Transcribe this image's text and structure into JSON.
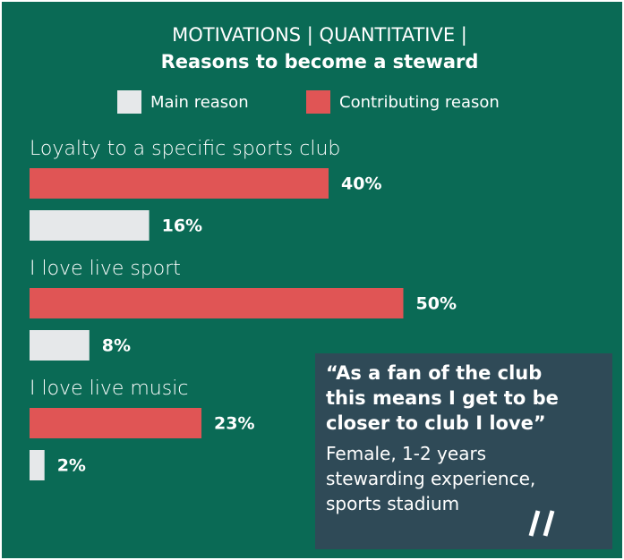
{
  "chart_data": {
    "type": "barh",
    "title": "MOTIVATIONS | QUANTITATIVE |",
    "subtitle": "Reasons to become a steward",
    "categories": [
      "Loyalty to a specific sports club",
      "I love live sport",
      "I love live music"
    ],
    "series": [
      {
        "name": "Main reason",
        "color": "#e6e8ea",
        "values": [
          16,
          8,
          2
        ],
        "value_labels": [
          "16%",
          "8%",
          "2%"
        ]
      },
      {
        "name": "Contributing reason",
        "color": "#e05555",
        "values": [
          40,
          50,
          23
        ],
        "value_labels": [
          "40%",
          "50%",
          "23%"
        ]
      }
    ],
    "annotation": {
      "quote": [
        "“As a fan of the club",
        "this means I get to be",
        "closer to club I love”"
      ],
      "source": [
        "Female, 1-2 years",
        "stewarding experience,",
        "sports stadium"
      ]
    }
  }
}
